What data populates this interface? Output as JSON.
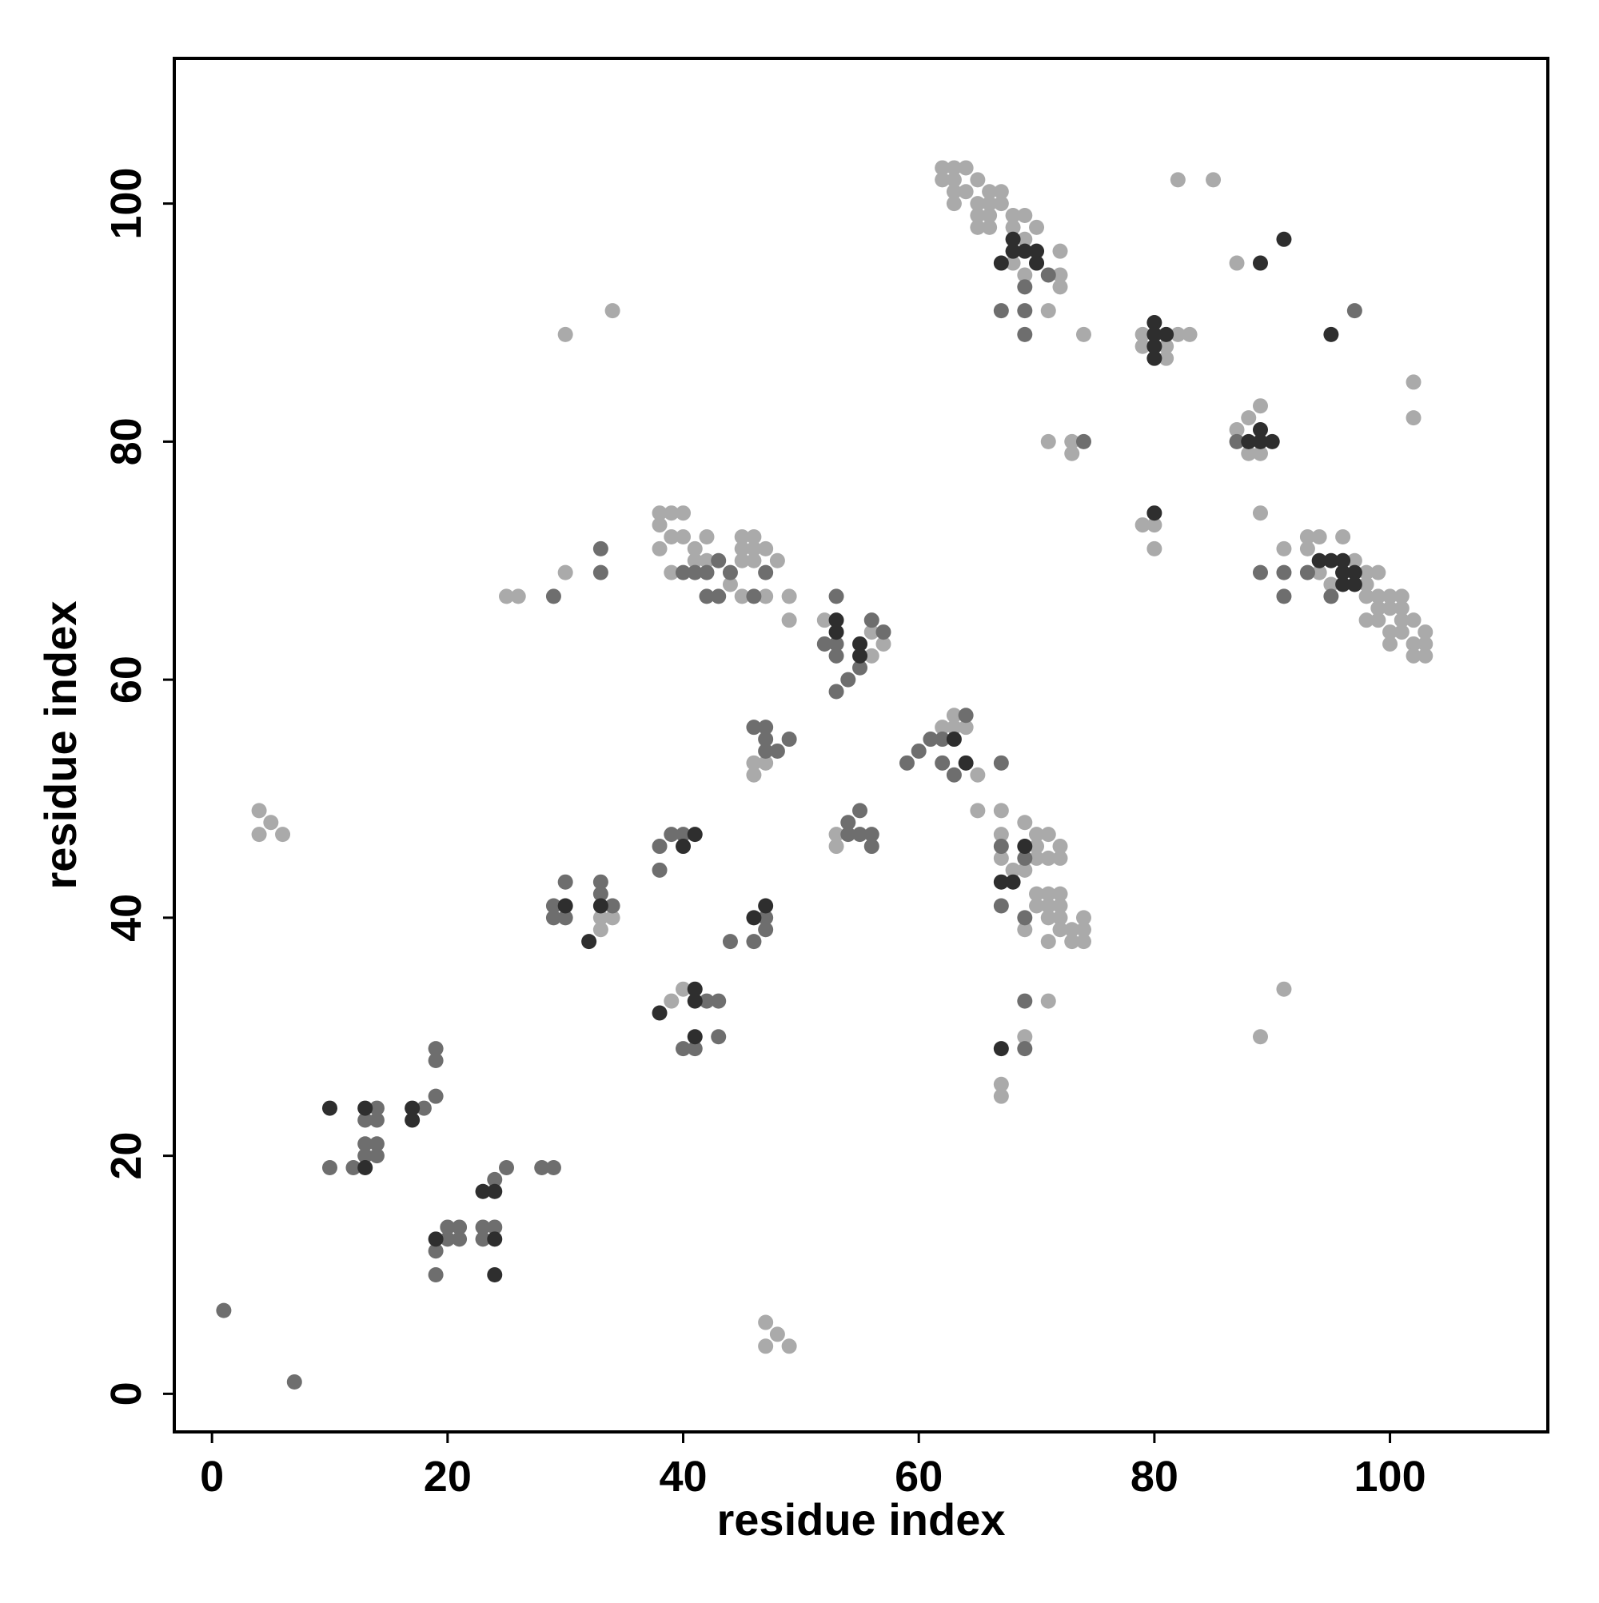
{
  "chart_data": {
    "type": "scatter",
    "xlabel": "residue index",
    "ylabel": "residue index",
    "xlim": [
      -3.2,
      113.4
    ],
    "ylim": [
      -3.2,
      112.2
    ],
    "xticks": [
      0,
      20,
      40,
      60,
      80,
      100
    ],
    "yticks": [
      0,
      20,
      40,
      60,
      80,
      100
    ],
    "series": [
      {
        "color": "#aaaaaa",
        "x": [
          4,
          4,
          5,
          6,
          30,
          34,
          30,
          25,
          26,
          33,
          34,
          33,
          47,
          47,
          48,
          49,
          38,
          39,
          40,
          38,
          39,
          38,
          39,
          40,
          41,
          42,
          41,
          42,
          44,
          45,
          46,
          45,
          46,
          47,
          45,
          46,
          48,
          45,
          47,
          49,
          49,
          46,
          47,
          46,
          52,
          56,
          57,
          56,
          62,
          63,
          64,
          62,
          63,
          65,
          63,
          64,
          66,
          67,
          63,
          65,
          66,
          67,
          65,
          66,
          68,
          69,
          65,
          66,
          68,
          70,
          69,
          68,
          69,
          70,
          72,
          72,
          72,
          71,
          74,
          71,
          73,
          73,
          82,
          85,
          87,
          79,
          82,
          83,
          79,
          81,
          81,
          80,
          79,
          80,
          87,
          88,
          89,
          88,
          89,
          89,
          91,
          93,
          94,
          93,
          96,
          94,
          95,
          97,
          98,
          99,
          98,
          98,
          99,
          100,
          101,
          99,
          100,
          101,
          98,
          99,
          101,
          102,
          100,
          101,
          103,
          100,
          102,
          103,
          102,
          103,
          62,
          63,
          64,
          63,
          65,
          65,
          67,
          53,
          53,
          67,
          67,
          68,
          69,
          70,
          71,
          70,
          72,
          70,
          71,
          72,
          69,
          70,
          71,
          72,
          70,
          71,
          72,
          71,
          72,
          69,
          71,
          72,
          73,
          73,
          74,
          74,
          74,
          71,
          69,
          67,
          67,
          91,
          89,
          39,
          40,
          102,
          102
        ],
        "values": [
          49,
          47,
          48,
          47,
          89,
          91,
          69,
          67,
          67,
          40,
          40,
          39,
          6,
          4,
          5,
          4,
          74,
          74,
          74,
          73,
          72,
          71,
          69,
          72,
          71,
          72,
          70,
          70,
          68,
          72,
          72,
          71,
          71,
          71,
          70,
          70,
          70,
          67,
          67,
          67,
          65,
          53,
          53,
          52,
          65,
          64,
          63,
          62,
          103,
          103,
          103,
          102,
          102,
          102,
          101,
          101,
          101,
          101,
          100,
          100,
          100,
          100,
          99,
          99,
          99,
          99,
          98,
          98,
          98,
          98,
          97,
          95,
          94,
          95,
          96,
          94,
          93,
          91,
          89,
          80,
          80,
          79,
          102,
          102,
          95,
          89,
          89,
          89,
          88,
          88,
          87,
          73,
          73,
          71,
          81,
          82,
          83,
          79,
          79,
          74,
          71,
          72,
          72,
          71,
          72,
          69,
          68,
          70,
          69,
          69,
          68,
          67,
          67,
          67,
          67,
          66,
          66,
          66,
          65,
          65,
          65,
          65,
          64,
          64,
          64,
          63,
          63,
          63,
          62,
          62,
          56,
          57,
          56,
          56,
          52,
          49,
          49,
          47,
          46,
          47,
          45,
          44,
          48,
          47,
          47,
          46,
          46,
          45,
          45,
          45,
          44,
          42,
          42,
          42,
          41,
          41,
          41,
          40,
          40,
          39,
          38,
          39,
          39,
          38,
          38,
          39,
          40,
          33,
          30,
          26,
          25,
          34,
          30,
          33,
          34,
          85,
          82
        ]
      },
      {
        "color": "#6e6e6e",
        "x": [
          1,
          7,
          10,
          12,
          13,
          13,
          13,
          14,
          14,
          14,
          14,
          18,
          19,
          19,
          19,
          19,
          19,
          20,
          20,
          21,
          21,
          23,
          23,
          24,
          24,
          25,
          28,
          29,
          29,
          29,
          30,
          30,
          33,
          33,
          34,
          33,
          33,
          29,
          38,
          38,
          39,
          40,
          44,
          46,
          47,
          47,
          40,
          41,
          42,
          43,
          43,
          46,
          47,
          47,
          47,
          48,
          49,
          52,
          53,
          53,
          54,
          55,
          54,
          55,
          54,
          55,
          56,
          56,
          59,
          60,
          61,
          62,
          63,
          67,
          67,
          67,
          69,
          69,
          69,
          69,
          67,
          69,
          69,
          69,
          64,
          53,
          42,
          43,
          46,
          40,
          41,
          42,
          43,
          44,
          47,
          56,
          57,
          91,
          91,
          89,
          96,
          95,
          97,
          87,
          80,
          74,
          71,
          62,
          93,
          53
        ],
        "values": [
          7,
          1,
          19,
          19,
          23,
          21,
          20,
          24,
          23,
          21,
          20,
          24,
          29,
          28,
          25,
          12,
          10,
          14,
          13,
          14,
          13,
          14,
          13,
          14,
          18,
          19,
          19,
          19,
          41,
          40,
          43,
          40,
          43,
          42,
          41,
          71,
          69,
          67,
          46,
          44,
          47,
          47,
          38,
          38,
          39,
          40,
          29,
          29,
          33,
          33,
          30,
          56,
          56,
          55,
          54,
          54,
          55,
          63,
          62,
          59,
          60,
          61,
          47,
          49,
          48,
          47,
          47,
          46,
          53,
          54,
          55,
          53,
          52,
          53,
          46,
          41,
          45,
          40,
          33,
          29,
          91,
          91,
          89,
          93,
          57,
          67,
          67,
          67,
          67,
          69,
          69,
          69,
          70,
          69,
          69,
          65,
          64,
          69,
          67,
          69,
          69,
          67,
          91,
          80,
          88,
          80,
          94,
          55,
          69,
          63
        ]
      },
      {
        "color": "#2e2e2e",
        "x": [
          10,
          13,
          13,
          17,
          17,
          19,
          24,
          24,
          23,
          24,
          30,
          32,
          33,
          38,
          41,
          41,
          41,
          40,
          41,
          46,
          47,
          53,
          53,
          55,
          55,
          63,
          64,
          68,
          68,
          69,
          70,
          70,
          67,
          80,
          80,
          80,
          80,
          81,
          80,
          89,
          91,
          95,
          88,
          89,
          89,
          90,
          94,
          95,
          96,
          96,
          97,
          96,
          97,
          67,
          67,
          68,
          69
        ],
        "values": [
          24,
          24,
          19,
          24,
          23,
          13,
          13,
          10,
          17,
          17,
          41,
          38,
          41,
          32,
          33,
          30,
          34,
          46,
          47,
          40,
          41,
          64,
          65,
          63,
          62,
          55,
          53,
          97,
          96,
          96,
          96,
          95,
          95,
          90,
          89,
          88,
          87,
          89,
          74,
          95,
          97,
          89,
          80,
          80,
          81,
          80,
          70,
          70,
          70,
          69,
          69,
          68,
          68,
          29,
          43,
          43,
          46
        ]
      }
    ]
  }
}
